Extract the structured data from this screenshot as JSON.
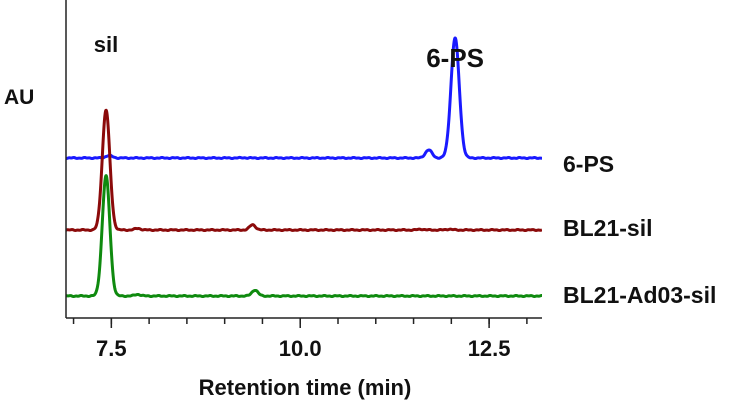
{
  "chart_data": {
    "type": "line",
    "title": "",
    "xlabel": "Retention time (min)",
    "ylabel": "AU",
    "xlim": [
      6.9,
      13.2
    ],
    "x_ticks": [
      7.5,
      10.0,
      12.5
    ],
    "x_tick_labels": [
      "7.5",
      "10.0",
      "12.5"
    ],
    "x_minor_step": 0.5,
    "grid": false,
    "legend": "labels at right end of each trace",
    "y_ticks_shown": false,
    "series": [
      {
        "name": "6-PS",
        "color": "#1a1aff",
        "baseline": 0.0,
        "peaks": [
          {
            "x": 7.47,
            "height": 0.03,
            "width": 0.045
          },
          {
            "x": 9.25,
            "height": 0.004,
            "width": 0.03
          },
          {
            "x": 11.7,
            "height": 0.1,
            "width": 0.045
          },
          {
            "x": 12.05,
            "height": 1.5,
            "width": 0.055
          }
        ]
      },
      {
        "name": "BL21-sil",
        "color": "#8b0a0a",
        "baseline": 0.0,
        "peaks": [
          {
            "x": 7.43,
            "height": 1.5,
            "width": 0.05
          },
          {
            "x": 7.85,
            "height": 0.02,
            "width": 0.04
          },
          {
            "x": 9.37,
            "height": 0.065,
            "width": 0.04
          },
          {
            "x": 11.6,
            "height": 0.01,
            "width": 0.04
          },
          {
            "x": 11.97,
            "height": 0.01,
            "width": 0.04
          }
        ]
      },
      {
        "name": "BL21-Ad03-sil",
        "color": "#0f8a0f",
        "baseline": 0.0,
        "peaks": [
          {
            "x": 7.43,
            "height": 1.5,
            "width": 0.05
          },
          {
            "x": 7.85,
            "height": 0.02,
            "width": 0.04
          },
          {
            "x": 9.4,
            "height": 0.075,
            "width": 0.04
          }
        ]
      }
    ],
    "annotations": [
      {
        "text": "sil",
        "x": 7.43
      },
      {
        "text": "6-PS",
        "x": 12.05
      }
    ]
  }
}
